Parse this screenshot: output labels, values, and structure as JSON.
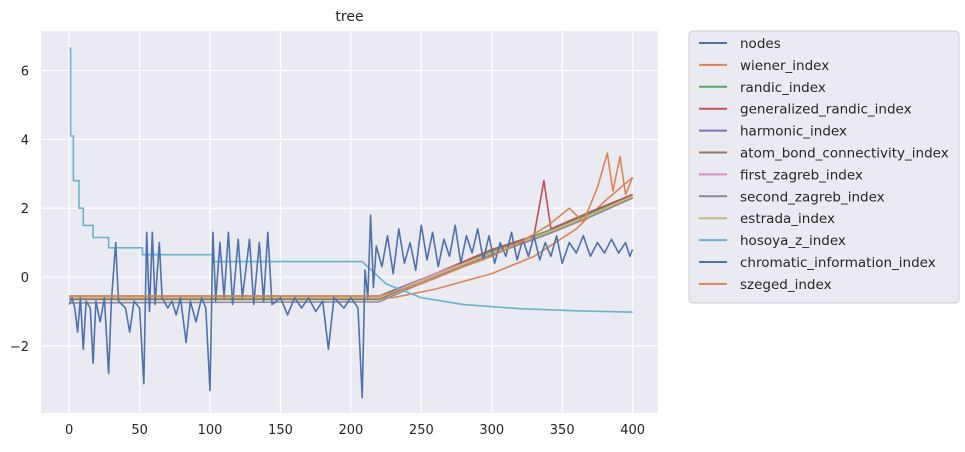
{
  "chart_data": {
    "type": "line",
    "title": "tree",
    "xlabel": "",
    "ylabel": "",
    "xlim": [
      -20,
      418
    ],
    "ylim": [
      -3.95,
      7.15
    ],
    "xticks": [
      0,
      50,
      100,
      150,
      200,
      250,
      300,
      350,
      400
    ],
    "yticks": [
      -2,
      0,
      2,
      4,
      6
    ],
    "grid": true,
    "legend_position": "outside-right",
    "series": [
      {
        "name": "nodes",
        "color": "#4c72b0",
        "points": [
          [
            0,
            -0.55
          ],
          [
            220,
            -0.55
          ],
          [
            260,
            0.1
          ],
          [
            300,
            0.7
          ],
          [
            340,
            1.3
          ],
          [
            370,
            1.8
          ],
          [
            400,
            2.3
          ]
        ]
      },
      {
        "name": "wiener_index",
        "color": "#dd8452",
        "points": [
          [
            0,
            -0.6
          ],
          [
            230,
            -0.6
          ],
          [
            260,
            -0.35
          ],
          [
            300,
            0.1
          ],
          [
            330,
            0.6
          ],
          [
            360,
            1.4
          ],
          [
            380,
            2.2
          ],
          [
            400,
            2.9
          ]
        ]
      },
      {
        "name": "randic_index",
        "color": "#55a868",
        "points": [
          [
            0,
            -0.6
          ],
          [
            220,
            -0.6
          ],
          [
            260,
            0.1
          ],
          [
            300,
            0.75
          ],
          [
            340,
            1.35
          ],
          [
            370,
            1.85
          ],
          [
            400,
            2.4
          ]
        ]
      },
      {
        "name": "generalized_randic_index",
        "color": "#c44e52",
        "points": [
          [
            0,
            -0.6
          ],
          [
            220,
            -0.6
          ],
          [
            260,
            0.1
          ],
          [
            300,
            0.8
          ],
          [
            330,
            1.2
          ],
          [
            337,
            2.8
          ],
          [
            342,
            1.4
          ],
          [
            370,
            1.9
          ],
          [
            400,
            2.4
          ]
        ]
      },
      {
        "name": "harmonic_index",
        "color": "#8172b3",
        "points": [
          [
            0,
            -0.62
          ],
          [
            220,
            -0.62
          ],
          [
            260,
            0.1
          ],
          [
            300,
            0.7
          ],
          [
            340,
            1.3
          ],
          [
            370,
            1.8
          ],
          [
            400,
            2.3
          ]
        ]
      },
      {
        "name": "atom_bond_connectivity_index",
        "color": "#937860",
        "points": [
          [
            0,
            -0.65
          ],
          [
            220,
            -0.65
          ],
          [
            260,
            0.05
          ],
          [
            300,
            0.65
          ],
          [
            340,
            1.25
          ],
          [
            370,
            1.75
          ],
          [
            400,
            2.3
          ]
        ]
      },
      {
        "name": "first_zagreb_index",
        "color": "#da8bc3",
        "points": [
          [
            0,
            -0.6
          ],
          [
            220,
            -0.6
          ],
          [
            260,
            0.1
          ],
          [
            300,
            0.7
          ],
          [
            340,
            1.3
          ],
          [
            370,
            1.8
          ],
          [
            400,
            2.3
          ]
        ]
      },
      {
        "name": "second_zagreb_index",
        "color": "#8c8c8c",
        "points": [
          [
            0,
            -0.75
          ],
          [
            220,
            -0.72
          ],
          [
            260,
            0.0
          ],
          [
            300,
            0.65
          ],
          [
            340,
            1.25
          ],
          [
            370,
            1.75
          ],
          [
            400,
            2.3
          ]
        ]
      },
      {
        "name": "estrada_index",
        "color": "#ccb974",
        "points": [
          [
            0,
            -0.6
          ],
          [
            220,
            -0.6
          ],
          [
            260,
            0.05
          ],
          [
            300,
            0.7
          ],
          [
            340,
            1.3
          ],
          [
            370,
            1.8
          ],
          [
            400,
            2.35
          ]
        ]
      },
      {
        "name": "hosoya_z_index",
        "color": "#64b5cd",
        "points": [
          [
            0,
            6.65
          ],
          [
            1,
            6.65
          ],
          [
            1,
            4.1
          ],
          [
            3,
            4.1
          ],
          [
            3,
            2.8
          ],
          [
            7,
            2.8
          ],
          [
            7,
            2.0
          ],
          [
            10,
            2.0
          ],
          [
            10,
            1.5
          ],
          [
            17,
            1.5
          ],
          [
            17,
            1.15
          ],
          [
            28,
            1.15
          ],
          [
            28,
            0.85
          ],
          [
            52,
            0.85
          ],
          [
            52,
            0.65
          ],
          [
            102,
            0.65
          ],
          [
            102,
            0.45
          ],
          [
            208,
            0.45
          ],
          [
            225,
            -0.2
          ],
          [
            250,
            -0.6
          ],
          [
            280,
            -0.8
          ],
          [
            320,
            -0.92
          ],
          [
            360,
            -0.98
          ],
          [
            400,
            -1.02
          ]
        ]
      },
      {
        "name": "chromatic_information_index",
        "color": "#4c72b0",
        "points": [
          [
            0,
            -0.8
          ],
          [
            2,
            -0.6
          ],
          [
            4,
            -0.9
          ],
          [
            6,
            -1.6
          ],
          [
            8,
            -0.6
          ],
          [
            10,
            -2.1
          ],
          [
            12,
            -0.7
          ],
          [
            15,
            -0.9
          ],
          [
            17,
            -2.5
          ],
          [
            19,
            -0.7
          ],
          [
            22,
            -1.3
          ],
          [
            25,
            -0.6
          ],
          [
            28,
            -2.8
          ],
          [
            30,
            -0.7
          ],
          [
            33,
            1.0
          ],
          [
            35,
            -0.7
          ],
          [
            40,
            -0.9
          ],
          [
            43,
            -1.6
          ],
          [
            46,
            -0.7
          ],
          [
            50,
            -0.9
          ],
          [
            53,
            -3.1
          ],
          [
            55,
            1.3
          ],
          [
            57,
            -1.0
          ],
          [
            59,
            1.3
          ],
          [
            61,
            -0.8
          ],
          [
            64,
            1.0
          ],
          [
            66,
            -0.6
          ],
          [
            70,
            -0.9
          ],
          [
            73,
            -0.7
          ],
          [
            76,
            -1.1
          ],
          [
            79,
            -0.6
          ],
          [
            83,
            -1.9
          ],
          [
            86,
            -0.7
          ],
          [
            90,
            -1.3
          ],
          [
            94,
            -0.6
          ],
          [
            97,
            -0.9
          ],
          [
            100,
            -3.3
          ],
          [
            102,
            1.3
          ],
          [
            104,
            -0.7
          ],
          [
            107,
            1.0
          ],
          [
            110,
            -0.6
          ],
          [
            113,
            1.3
          ],
          [
            116,
            -0.8
          ],
          [
            120,
            1.1
          ],
          [
            123,
            -0.6
          ],
          [
            128,
            1.1
          ],
          [
            131,
            -0.8
          ],
          [
            135,
            1.0
          ],
          [
            138,
            -0.7
          ],
          [
            141,
            1.3
          ],
          [
            144,
            -0.8
          ],
          [
            150,
            -0.6
          ],
          [
            155,
            -1.1
          ],
          [
            160,
            -0.6
          ],
          [
            165,
            -0.9
          ],
          [
            170,
            -0.6
          ],
          [
            175,
            -1.0
          ],
          [
            180,
            -0.7
          ],
          [
            184,
            -2.1
          ],
          [
            188,
            -0.6
          ],
          [
            195,
            -0.9
          ],
          [
            200,
            -0.6
          ],
          [
            205,
            -0.9
          ],
          [
            208,
            -3.5
          ],
          [
            210,
            0.2
          ],
          [
            212,
            -0.6
          ],
          [
            214,
            1.8
          ],
          [
            216,
            -0.3
          ],
          [
            218,
            0.9
          ],
          [
            222,
            0.3
          ],
          [
            226,
            1.2
          ],
          [
            230,
            0.1
          ],
          [
            234,
            1.4
          ],
          [
            238,
            0.4
          ],
          [
            242,
            1.0
          ],
          [
            246,
            0.2
          ],
          [
            250,
            1.5
          ],
          [
            254,
            0.5
          ],
          [
            258,
            1.3
          ],
          [
            262,
            0.3
          ],
          [
            266,
            1.1
          ],
          [
            270,
            0.6
          ],
          [
            274,
            1.5
          ],
          [
            278,
            0.4
          ],
          [
            282,
            1.2
          ],
          [
            286,
            0.7
          ],
          [
            290,
            1.4
          ],
          [
            294,
            0.5
          ],
          [
            298,
            1.2
          ],
          [
            302,
            0.4
          ],
          [
            306,
            1.0
          ],
          [
            310,
            0.6
          ],
          [
            314,
            1.3
          ],
          [
            318,
            0.5
          ],
          [
            322,
            1.1
          ],
          [
            326,
            0.6
          ],
          [
            330,
            1.2
          ],
          [
            334,
            0.5
          ],
          [
            338,
            1.0
          ],
          [
            342,
            0.6
          ],
          [
            346,
            1.2
          ],
          [
            350,
            0.4
          ],
          [
            355,
            1.0
          ],
          [
            360,
            0.7
          ],
          [
            365,
            1.2
          ],
          [
            370,
            0.6
          ],
          [
            375,
            1.0
          ],
          [
            380,
            0.7
          ],
          [
            385,
            1.1
          ],
          [
            390,
            0.7
          ],
          [
            395,
            1.0
          ],
          [
            398,
            0.6
          ],
          [
            400,
            0.8
          ]
        ]
      },
      {
        "name": "szeged_index",
        "color": "#dd8452",
        "points": [
          [
            0,
            -0.55
          ],
          [
            220,
            -0.55
          ],
          [
            250,
            -0.2
          ],
          [
            280,
            0.3
          ],
          [
            300,
            0.6
          ],
          [
            320,
            1.0
          ],
          [
            340,
            1.5
          ],
          [
            355,
            2.0
          ],
          [
            365,
            1.6
          ],
          [
            375,
            2.6
          ],
          [
            382,
            3.6
          ],
          [
            386,
            2.5
          ],
          [
            391,
            3.5
          ],
          [
            395,
            2.4
          ],
          [
            400,
            2.9
          ]
        ]
      }
    ]
  }
}
